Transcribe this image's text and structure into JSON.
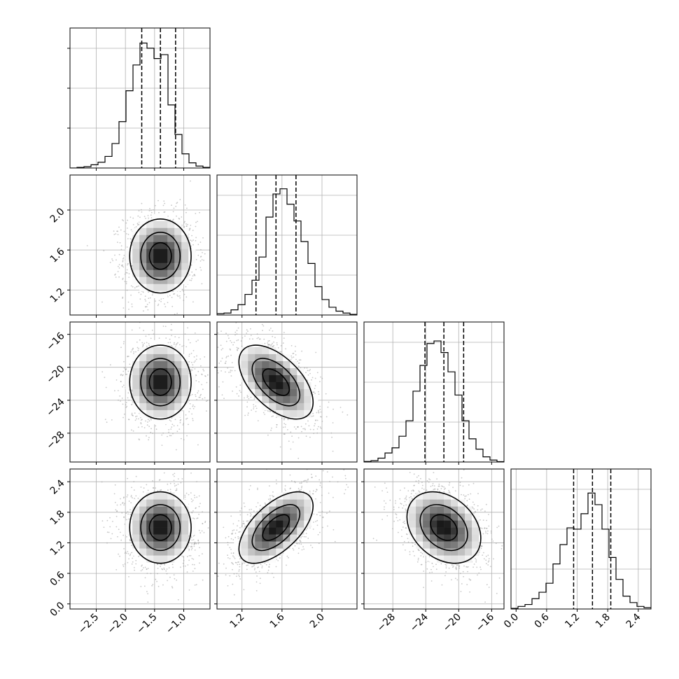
{
  "chart_data": {
    "type": "corner",
    "grid": true,
    "parameters": [
      {
        "range": [
          -2.95,
          -0.55
        ],
        "ticks": [
          "-2.5",
          "-2.0",
          "-1.5",
          "-1.0"
        ],
        "tick_values": [
          -2.5,
          -2.0,
          -1.5,
          -1.0
        ],
        "quantiles": [
          -1.72,
          -1.4,
          -1.14
        ],
        "mean": -1.4,
        "sd": 0.27
      },
      {
        "range": [
          0.95,
          2.35
        ],
        "ticks": [
          "1.2",
          "1.6",
          "2.0"
        ],
        "tick_values": [
          1.2,
          1.6,
          2.0
        ],
        "quantiles": [
          1.34,
          1.54,
          1.74
        ],
        "mean": 1.54,
        "sd": 0.19
      },
      {
        "range": [
          -31.5,
          -14.5
        ],
        "ticks": [
          "-28",
          "-24",
          "-20",
          "-16"
        ],
        "tick_values": [
          -28,
          -24,
          -20,
          -16
        ],
        "quantiles": [
          -24.1,
          -21.8,
          -19.4
        ],
        "mean": -21.8,
        "sd": 2.3
      },
      {
        "range": [
          -0.1,
          2.65
        ],
        "ticks": [
          "0.0",
          "0.6",
          "1.2",
          "1.8",
          "2.4"
        ],
        "tick_values": [
          0.0,
          0.6,
          1.2,
          1.8,
          2.4
        ],
        "quantiles": [
          1.13,
          1.5,
          1.86
        ],
        "mean": 1.5,
        "sd": 0.36
      }
    ],
    "correlations": [
      [
        1,
        0,
        0,
        0
      ],
      [
        0,
        1,
        -0.55,
        0.6
      ],
      [
        0,
        -0.55,
        1,
        -0.3
      ],
      [
        0,
        0.6,
        -0.3,
        1
      ]
    ],
    "histograms": [
      [
        0.0,
        0.005,
        0.01,
        0.025,
        0.045,
        0.09,
        0.19,
        0.36,
        0.6,
        0.8,
        0.97,
        0.93,
        0.85,
        0.88,
        0.49,
        0.26,
        0.11,
        0.04,
        0.015,
        0.005
      ],
      [
        0.01,
        0.015,
        0.04,
        0.08,
        0.16,
        0.27,
        0.45,
        0.76,
        0.94,
        0.98,
        0.86,
        0.73,
        0.57,
        0.4,
        0.22,
        0.12,
        0.06,
        0.03,
        0.015,
        0.005
      ],
      [
        0.004,
        0.01,
        0.03,
        0.07,
        0.11,
        0.2,
        0.32,
        0.55,
        0.75,
        0.92,
        0.94,
        0.85,
        0.7,
        0.52,
        0.32,
        0.18,
        0.1,
        0.04,
        0.015,
        0.003
      ],
      [
        0.005,
        0.02,
        0.035,
        0.08,
        0.13,
        0.2,
        0.35,
        0.5,
        0.63,
        0.62,
        0.74,
        0.9,
        0.81,
        0.62,
        0.4,
        0.23,
        0.1,
        0.05,
        0.02,
        0.01
      ]
    ]
  }
}
